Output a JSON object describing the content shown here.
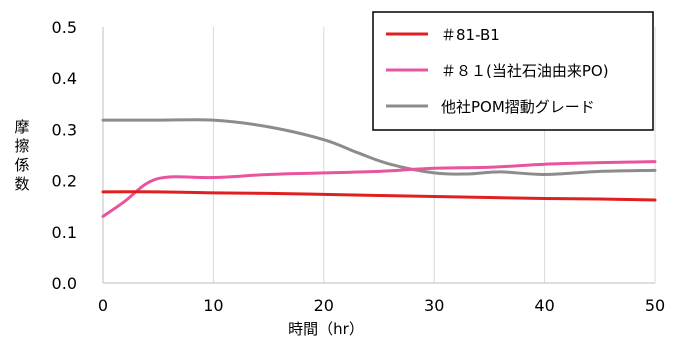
{
  "chart_data": {
    "type": "line",
    "xlabel": "時間（hr）",
    "ylabel": "摩擦係数",
    "xlim": [
      0,
      50
    ],
    "ylim": [
      0,
      0.5
    ],
    "xticks": [
      "0",
      "10",
      "20",
      "30",
      "40",
      "50"
    ],
    "yticks": [
      "0.0",
      "0.1",
      "0.2",
      "0.3",
      "0.4",
      "0.5"
    ],
    "grid": "vertical",
    "legend_position": "top-right",
    "series": [
      {
        "name": "＃81-B1",
        "color": "#e02020",
        "points": [
          [
            0,
            0.178
          ],
          [
            5,
            0.178
          ],
          [
            10,
            0.176
          ],
          [
            15,
            0.175
          ],
          [
            20,
            0.173
          ],
          [
            25,
            0.171
          ],
          [
            30,
            0.169
          ],
          [
            35,
            0.167
          ],
          [
            40,
            0.165
          ],
          [
            45,
            0.164
          ],
          [
            50,
            0.162
          ]
        ]
      },
      {
        "name": "＃８１(当社石油由来PO)",
        "color": "#e8559e",
        "points": [
          [
            0,
            0.13
          ],
          [
            2,
            0.16
          ],
          [
            4,
            0.195
          ],
          [
            6,
            0.207
          ],
          [
            10,
            0.206
          ],
          [
            15,
            0.212
          ],
          [
            20,
            0.215
          ],
          [
            25,
            0.218
          ],
          [
            30,
            0.224
          ],
          [
            35,
            0.226
          ],
          [
            40,
            0.232
          ],
          [
            45,
            0.235
          ],
          [
            50,
            0.237
          ]
        ]
      },
      {
        "name": "他社POM摺動グレード",
        "color": "#8c8c8c",
        "points": [
          [
            0,
            0.318
          ],
          [
            5,
            0.318
          ],
          [
            10,
            0.318
          ],
          [
            15,
            0.305
          ],
          [
            20,
            0.28
          ],
          [
            23,
            0.255
          ],
          [
            26,
            0.232
          ],
          [
            30,
            0.215
          ],
          [
            33,
            0.213
          ],
          [
            36,
            0.217
          ],
          [
            40,
            0.212
          ],
          [
            45,
            0.218
          ],
          [
            50,
            0.22
          ]
        ]
      }
    ]
  }
}
